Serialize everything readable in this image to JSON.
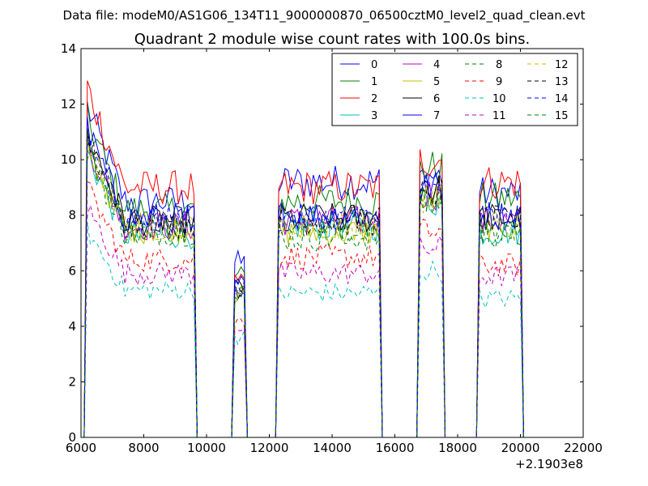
{
  "chart_data": {
    "type": "line",
    "suptitle": "Data file: modeM0/AS1G06_134T11_9000000870_06500cztM0_level2_quad_clean.evt",
    "title": "Quadrant 2 module wise count rates with 100.0s bins.",
    "xlabel": "",
    "ylabel": "",
    "xlim": [
      6000,
      22000
    ],
    "ylim": [
      0,
      14
    ],
    "x_offset_label": "+2.1903e8",
    "xticks": [
      6000,
      8000,
      10000,
      12000,
      14000,
      16000,
      18000,
      20000,
      22000
    ],
    "yticks": [
      0,
      2,
      4,
      6,
      8,
      10,
      12,
      14
    ],
    "legend_position": "top-right",
    "gaps": [
      [
        9700,
        10800
      ],
      [
        11300,
        12200
      ],
      [
        15700,
        16700
      ],
      [
        17700,
        18600
      ],
      [
        20100,
        22000
      ]
    ],
    "segments": [
      {
        "start": 6200,
        "end": 9600
      },
      {
        "start": 10900,
        "end": 11200
      },
      {
        "start": 12300,
        "end": 15500
      },
      {
        "start": 16800,
        "end": 17500
      },
      {
        "start": 18700,
        "end": 20000
      }
    ],
    "series": [
      {
        "name": "0",
        "color": "#0000ff",
        "dash": "solid",
        "levels": [
          8.5,
          6.3,
          9.2,
          9.4,
          8.8
        ]
      },
      {
        "name": "1",
        "color": "#008000",
        "dash": "solid",
        "levels": [
          8.2,
          5.8,
          8.5,
          9.7,
          8.6
        ]
      },
      {
        "name": "2",
        "color": "#ff0000",
        "dash": "solid",
        "levels": [
          9.0,
          5.5,
          9.0,
          10.0,
          9.2
        ]
      },
      {
        "name": "3",
        "color": "#00bfbf",
        "dash": "solid",
        "levels": [
          7.3,
          5.0,
          7.6,
          8.5,
          7.4
        ]
      },
      {
        "name": "4",
        "color": "#bf00bf",
        "dash": "solid",
        "levels": [
          7.6,
          5.2,
          7.8,
          8.8,
          7.8
        ]
      },
      {
        "name": "5",
        "color": "#bfbf00",
        "dash": "solid",
        "levels": [
          7.5,
          5.1,
          7.4,
          8.6,
          7.6
        ]
      },
      {
        "name": "6",
        "color": "#000000",
        "dash": "solid",
        "levels": [
          7.8,
          5.4,
          7.9,
          8.9,
          7.9
        ]
      },
      {
        "name": "7",
        "color": "#0000ff",
        "dash": "solid",
        "levels": [
          7.9,
          5.5,
          8.0,
          9.0,
          8.0
        ]
      },
      {
        "name": "8",
        "color": "#008000",
        "dash": "dashed",
        "levels": [
          7.4,
          5.0,
          7.2,
          8.4,
          7.3
        ]
      },
      {
        "name": "9",
        "color": "#ff0000",
        "dash": "dashed",
        "levels": [
          6.4,
          4.2,
          6.5,
          7.4,
          6.2
        ]
      },
      {
        "name": "10",
        "color": "#00bfbf",
        "dash": "dashed",
        "levels": [
          5.3,
          3.6,
          5.2,
          6.0,
          5.0
        ]
      },
      {
        "name": "11",
        "color": "#bf00bf",
        "dash": "dashed",
        "levels": [
          5.9,
          4.0,
          5.9,
          6.8,
          5.8
        ]
      },
      {
        "name": "12",
        "color": "#bfbf00",
        "dash": "dashed",
        "levels": [
          7.6,
          5.2,
          7.6,
          8.6,
          7.6
        ]
      },
      {
        "name": "13",
        "color": "#000000",
        "dash": "dashed",
        "levels": [
          7.7,
          5.3,
          7.8,
          8.8,
          7.8
        ]
      },
      {
        "name": "14",
        "color": "#0000ff",
        "dash": "dashed",
        "levels": [
          7.8,
          5.4,
          7.9,
          8.9,
          7.9
        ]
      },
      {
        "name": "15",
        "color": "#008000",
        "dash": "dashed",
        "levels": [
          7.5,
          5.1,
          7.5,
          8.5,
          7.5
        ]
      }
    ]
  }
}
